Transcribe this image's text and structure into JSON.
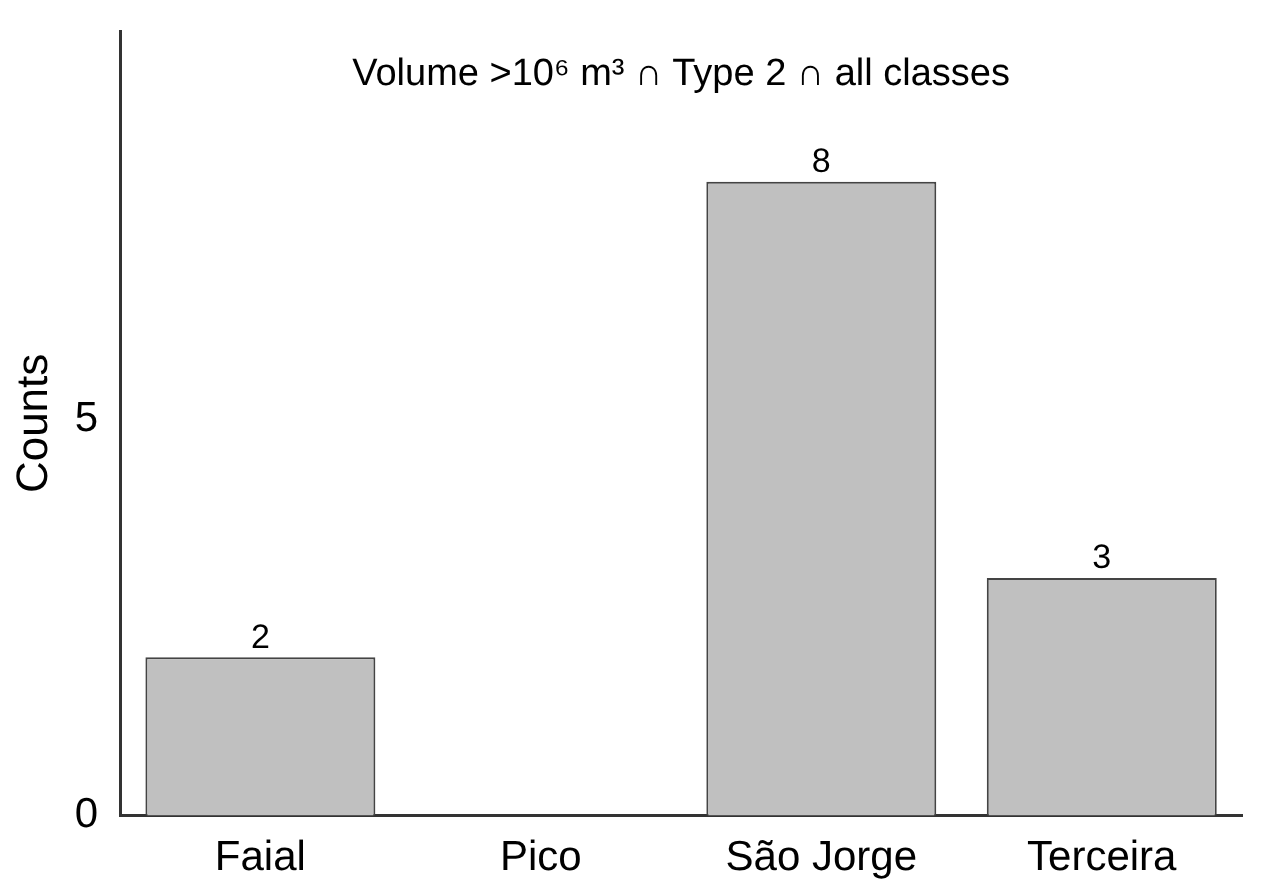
{
  "chart_data": {
    "type": "bar",
    "title": "Volume >10⁶ m³ ∩ Type 2 ∩ all classes",
    "ylabel": "Counts",
    "categories": [
      "Faial",
      "Pico",
      "São Jorge",
      "Terceira"
    ],
    "values": [
      2,
      0,
      8,
      3
    ],
    "value_labels": [
      "2",
      null,
      "8",
      "3"
    ],
    "color": "#c0c0c0",
    "ylim": [
      0,
      9.9
    ],
    "yticks": [
      0,
      5
    ],
    "grid": false,
    "legend": false
  }
}
